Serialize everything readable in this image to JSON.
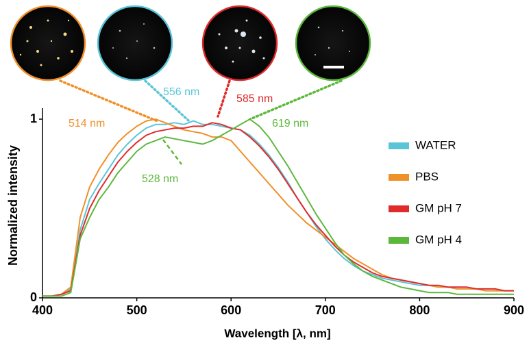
{
  "chart_data": {
    "type": "line",
    "x_label": "Wavelength [λ, nm]",
    "y_label": "Normalized intensity",
    "x": [
      400,
      410,
      420,
      430,
      440,
      450,
      460,
      470,
      480,
      490,
      500,
      510,
      520,
      530,
      540,
      550,
      560,
      570,
      580,
      590,
      600,
      610,
      620,
      630,
      640,
      650,
      660,
      670,
      680,
      690,
      700,
      710,
      720,
      730,
      740,
      750,
      760,
      770,
      780,
      790,
      800,
      810,
      820,
      830,
      840,
      850,
      860,
      870,
      880,
      890,
      900
    ],
    "series": [
      {
        "name": "WATER",
        "color": "#5bc5d8",
        "values": [
          0.01,
          0.01,
          0.02,
          0.05,
          0.38,
          0.55,
          0.64,
          0.72,
          0.8,
          0.86,
          0.91,
          0.95,
          0.97,
          0.97,
          0.98,
          0.97,
          0.99,
          0.97,
          0.97,
          0.96,
          0.95,
          0.94,
          0.91,
          0.86,
          0.8,
          0.73,
          0.65,
          0.56,
          0.48,
          0.4,
          0.33,
          0.27,
          0.22,
          0.18,
          0.15,
          0.13,
          0.11,
          0.1,
          0.09,
          0.08,
          0.07,
          0.07,
          0.06,
          0.06,
          0.05,
          0.05,
          0.05,
          0.04,
          0.04,
          0.04,
          0.04
        ]
      },
      {
        "name": "PBS",
        "color": "#f0902a",
        "values": [
          0.01,
          0.01,
          0.02,
          0.06,
          0.45,
          0.62,
          0.72,
          0.8,
          0.87,
          0.92,
          0.96,
          0.99,
          1.0,
          0.98,
          0.96,
          0.94,
          0.93,
          0.92,
          0.9,
          0.9,
          0.88,
          0.82,
          0.76,
          0.7,
          0.64,
          0.58,
          0.52,
          0.47,
          0.42,
          0.38,
          0.34,
          0.3,
          0.26,
          0.22,
          0.19,
          0.16,
          0.13,
          0.11,
          0.1,
          0.09,
          0.08,
          0.07,
          0.06,
          0.06,
          0.05,
          0.05,
          0.05,
          0.04,
          0.04,
          0.04,
          0.04
        ]
      },
      {
        "name": "GM pH 7",
        "color": "#e02b2b",
        "values": [
          0.01,
          0.01,
          0.02,
          0.04,
          0.35,
          0.5,
          0.6,
          0.68,
          0.76,
          0.82,
          0.87,
          0.91,
          0.93,
          0.94,
          0.95,
          0.95,
          0.96,
          0.96,
          0.98,
          0.97,
          0.95,
          0.94,
          0.9,
          0.85,
          0.79,
          0.72,
          0.64,
          0.56,
          0.48,
          0.41,
          0.35,
          0.29,
          0.24,
          0.2,
          0.17,
          0.14,
          0.12,
          0.11,
          0.1,
          0.09,
          0.08,
          0.07,
          0.07,
          0.06,
          0.06,
          0.06,
          0.05,
          0.05,
          0.05,
          0.04,
          0.04
        ]
      },
      {
        "name": "GM pH 4",
        "color": "#5cb83c",
        "values": [
          0.01,
          0.01,
          0.01,
          0.03,
          0.33,
          0.45,
          0.55,
          0.62,
          0.7,
          0.76,
          0.82,
          0.86,
          0.88,
          0.9,
          0.89,
          0.88,
          0.87,
          0.86,
          0.88,
          0.91,
          0.94,
          0.97,
          1.0,
          0.96,
          0.9,
          0.82,
          0.74,
          0.65,
          0.56,
          0.47,
          0.39,
          0.31,
          0.24,
          0.19,
          0.15,
          0.12,
          0.1,
          0.08,
          0.06,
          0.05,
          0.04,
          0.03,
          0.03,
          0.03,
          0.02,
          0.02,
          0.02,
          0.02,
          0.02,
          0.02,
          0.02
        ]
      }
    ],
    "xlim": [
      400,
      900
    ],
    "xticks": [
      400,
      500,
      600,
      700,
      800,
      900
    ],
    "ylim": [
      0,
      1
    ],
    "yticks": [
      0,
      1
    ],
    "grid": false,
    "legend": "right",
    "annotations": [
      {
        "text": "514 nm",
        "color": "#f0902a"
      },
      {
        "text": "556 nm",
        "color": "#5bc5d8"
      },
      {
        "text": "585 nm",
        "color": "#e02b2b"
      },
      {
        "text": "619 nm",
        "color": "#5cb83c"
      },
      {
        "text": "528 nm",
        "color": "#5cb83c"
      }
    ]
  }
}
